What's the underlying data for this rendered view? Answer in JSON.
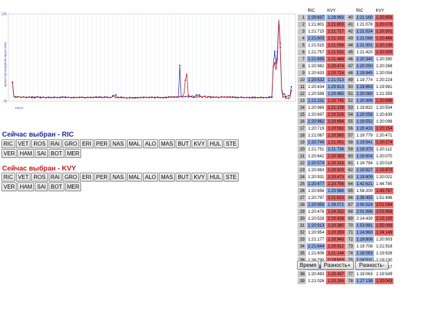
{
  "chart_data": {
    "type": "line",
    "ylim": [
      78,
      135
    ],
    "ytick_top": "135",
    "ytick_bottom": "78",
    "ylabel": "время прохождения круга (мм)",
    "xlabel_prefix": "Круги",
    "grid": true,
    "series": [
      {
        "color": "#2833a8",
        "values": [
          90.2,
          81.5,
          80.7,
          80.9,
          80.9,
          80.9,
          80.6,
          80.4,
          80.8,
          80.6,
          80.3,
          80.5,
          80.8,
          80.6,
          80.8,
          80.8,
          80.2,
          80.9,
          80.8,
          80.5,
          80.7,
          80.2,
          80.6,
          80.6,
          80.2,
          80.7,
          80.6,
          80.4,
          80.3,
          80.7,
          80.6,
          80.7,
          80.4,
          80.6,
          80.5,
          80.9,
          80.8,
          80.6,
          80.8,
          80.3,
          80.6,
          80.5,
          80.3,
          80.6,
          80.3,
          80.5,
          80.4,
          80.6,
          80.4,
          80.7,
          80.6,
          80.6,
          80.4,
          80.3,
          80.5,
          80.6,
          80.4,
          80.7,
          80.5,
          80.7,
          80.8,
          80.6,
          80.7,
          80.9,
          80.5,
          80.5,
          80.8,
          80.7,
          80.7,
          80.5,
          80.4,
          80.4,
          81.3,
          81.4,
          82.2,
          80.8,
          80.5,
          80.6,
          80.7,
          80.6,
          80.4,
          80.3,
          80.1,
          80.1,
          80.5,
          80.4,
          80.3,
          80.4,
          80.4,
          80.5,
          80.3,
          80.4,
          80.4,
          80.4,
          80.6,
          80.7,
          80.5,
          80.5,
          80.4,
          80.6,
          80.7,
          80.5,
          80.2,
          80.5,
          80.7,
          80.6,
          80.4,
          80.6,
          80.3,
          80.4,
          80.3,
          80.4,
          80.6,
          80.9,
          80.7,
          80.9,
          80.9,
          80.8,
          80.8,
          81.0,
          101.4,
          80.9,
          80.9,
          80.7,
          81.1,
          80.9,
          80.8,
          81.4,
          81.0,
          81.6,
          80.8,
          81.4,
          82.1,
          81.6,
          82.1,
          81.1,
          80.7,
          81.1,
          81.2,
          80.4,
          80.7,
          81.3,
          80.7,
          80.9,
          80.6,
          80.6,
          80.7,
          80.7,
          80.5,
          80.7,
          81.0,
          80.7,
          80.8,
          80.7,
          80.7,
          80.6,
          80.9,
          80.6,
          80.5,
          80.8,
          80.6,
          80.2,
          80.4,
          80.5,
          80.7,
          80.6,
          80.4,
          80.3,
          80.4,
          80.6,
          80.5,
          80.4,
          80.6,
          80.7,
          80.6,
          80.5,
          80.3,
          80.3,
          80.4,
          80.7,
          80.4,
          80.5,
          80.4,
          80.4,
          80.8,
          80.8,
          80.9,
          101.4,
          110.6,
          101.9,
          110.3,
          131.2,
          113.2,
          86.5,
          82.3,
          83.0,
          80.9,
          81.3,
          81.5,
          81.9,
          87.5
        ]
      },
      {
        "color": "#c41a1a",
        "values": [
          90.5,
          81.0,
          80.8,
          80.4,
          80.9,
          80.9,
          80.6,
          80.6,
          80.9,
          80.5,
          80.6,
          80.6,
          80.8,
          80.4,
          80.3,
          80.3,
          80.6,
          80.5,
          80.9,
          80.7,
          80.2,
          80.6,
          80.6,
          80.6,
          80.4,
          80.5,
          80.3,
          80.7,
          80.4,
          80.5,
          80.3,
          80.6,
          80.4,
          80.6,
          80.3,
          80.2,
          80.7,
          80.5,
          80.4,
          80.4,
          80.6,
          80.5,
          80.4,
          80.2,
          80.6,
          80.5,
          80.4,
          80.6,
          80.6,
          80.4,
          80.6,
          80.4,
          80.2,
          80.6,
          80.5,
          80.3,
          80.6,
          80.4,
          80.4,
          80.5,
          80.5,
          80.3,
          80.6,
          80.4,
          80.6,
          80.2,
          80.6,
          80.5,
          80.5,
          80.4,
          80.5,
          80.5,
          81.7,
          81.3,
          80.4,
          80.4,
          80.4,
          80.4,
          80.3,
          80.3,
          80.3,
          80.3,
          80.2,
          80.2,
          80.2,
          80.2,
          80.2,
          80.1,
          80.1,
          80.1,
          80.4,
          80.3,
          80.5,
          80.6,
          80.3,
          80.6,
          80.5,
          80.5,
          80.6,
          80.3,
          80.5,
          80.4,
          80.6,
          80.2,
          80.5,
          80.4,
          80.3,
          80.4,
          80.2,
          80.7,
          80.6,
          80.6,
          80.8,
          80.5,
          80.8,
          80.6,
          80.7,
          80.5,
          80.7,
          80.5,
          81.0,
          81.1,
          81.2,
          82.9,
          91.7,
          96.2,
          81.9,
          80.9,
          81.1,
          80.5,
          80.5,
          80.6,
          80.8,
          80.8,
          80.9,
          81.0,
          80.6,
          81.0,
          81.3,
          80.5,
          80.8,
          81.0,
          80.4,
          80.6,
          80.8,
          80.5,
          80.7,
          80.6,
          80.4,
          80.6,
          80.8,
          80.6,
          80.8,
          80.5,
          80.7,
          80.9,
          80.6,
          80.6,
          80.9,
          80.6,
          80.3,
          80.7,
          80.5,
          80.4,
          80.6,
          80.4,
          80.4,
          80.4,
          80.5,
          80.5,
          80.2,
          80.4,
          80.2,
          80.4,
          80.2,
          80.3,
          80.4,
          80.5,
          80.6,
          80.4,
          80.2,
          80.5,
          80.3,
          80.4,
          80.4,
          80.5,
          80.5,
          99.4,
          103.0,
          98.3,
          105.4,
          130.4,
          115.8,
          85.7,
          80.7,
          81.1,
          80.1,
          79.8,
          80.0,
          80.3,
          84.9
        ]
      }
    ]
  },
  "selection_ric": {
    "title": "Сейчас выбран - RIC",
    "color": "#2833a8",
    "buttons_row1": [
      "RIC",
      "VET",
      "ROS",
      "RAI",
      "GRO",
      "ERI",
      "PER",
      "NAS",
      "MAL",
      "ALO",
      "MAS",
      "BUT",
      "KVY",
      "HUL",
      "STE"
    ],
    "buttons_row2": [
      "VER",
      "HAM",
      "SAI",
      "BOT",
      "MER"
    ]
  },
  "selection_kvy": {
    "title": "Сейчас выбран - KVY",
    "color": "#c41a1a",
    "buttons_row1": [
      "RIC",
      "VET",
      "ROS",
      "RAI",
      "GRO",
      "ERI",
      "PER",
      "NAS",
      "MAL",
      "ALO",
      "MAS",
      "BUT",
      "KVY",
      "HUL",
      "STE"
    ],
    "buttons_row2": [
      "VER",
      "HAM",
      "SAI",
      "BOT",
      "MER"
    ]
  },
  "lap_table": {
    "headers": [
      "",
      "RIC",
      "KVY",
      "",
      "RIC",
      "KVY"
    ],
    "rows": [
      [
        "1",
        "1:29:697",
        "1:28:993",
        "40",
        "1:21:160",
        "1:20:956"
      ],
      [
        "2",
        "1:21:801",
        "1:21:803",
        "41",
        "1:21:078",
        "1:20:078"
      ],
      [
        "3",
        "1:21:715",
        "1:21:717",
        "42",
        "1:21:524",
        "1:20:301"
      ],
      [
        "4",
        "1:21:603",
        "1:21:153",
        "43",
        "1:21:088",
        "1:20:466"
      ],
      [
        "5",
        "1:21:515",
        "1:21:056",
        "44",
        "1:21:301",
        "1:20:135"
      ],
      [
        "6",
        "1:21:757",
        "1:21:532",
        "45",
        "1:21:420",
        "1:20:305"
      ],
      [
        "7",
        "1:21:695",
        "1:21:468",
        "46",
        "1:20:340",
        "1:20:390"
      ],
      [
        "8",
        "1:20:982",
        "1:20:474",
        "47",
        "1:20:050",
        "1:20:268"
      ],
      [
        "9",
        "1:20:633",
        "1:20:724",
        "48",
        "1:19:945",
        "1:20:004"
      ],
      [
        "10",
        "1:20:532",
        "1:21:013",
        "49",
        "1:19:774",
        "1:20:224"
      ],
      [
        "11",
        "1:20:434",
        "1:20:613",
        "50",
        "1:19:863",
        "1:19:981"
      ],
      [
        "12",
        "1:20:599",
        "1:20:465",
        "51",
        "1:20:060",
        "1:21:359"
      ],
      [
        "13",
        "1:21:231",
        "1:20:745",
        "52",
        "1:20:999",
        "1:20:696"
      ],
      [
        "14",
        "1:20:969",
        "1:21:139",
        "53",
        "1:19:832",
        "1:20:504"
      ],
      [
        "15",
        "1:20:697",
        "1:20:526",
        "54",
        "1:20:056",
        "1:20:839"
      ],
      [
        "16",
        "1:20:962",
        "1:20:694",
        "55",
        "1:19:552",
        "1:20:098"
      ],
      [
        "17",
        "1:20:719",
        "1:20:592",
        "56",
        "1:20:433",
        "1:20:154"
      ],
      [
        "18",
        "1:21:067",
        "1:20:565",
        "57",
        "1:19:779",
        "1:20:471"
      ],
      [
        "19",
        "1:20:749",
        "1:21:001",
        "58",
        "1:19:541",
        "1:20:274"
      ],
      [
        "20",
        "1:21:751",
        "1:21:738",
        "59",
        "1:19:370",
        "1:20:112"
      ],
      [
        "21",
        "1:20:642",
        "1:20:393",
        "60",
        "1:19:604",
        "1:20:070"
      ],
      [
        "22",
        "1:20:574",
        "1:20:318",
        "61",
        "1:19:794",
        "1:20:018"
      ],
      [
        "23",
        "1:20:863",
        "1:20:923",
        "62",
        "1:19:927",
        "1:19:873"
      ],
      [
        "24",
        "1:20:931",
        "1:20:473",
        "63",
        "1:19:809",
        "1:20:021"
      ],
      [
        "25",
        "1:20:477",
        "1:20:756",
        "64",
        "1:42:621",
        "1:44:785"
      ],
      [
        "26",
        "1:20:656",
        "1:20:988",
        "65",
        "1:59:200",
        "1:43:767"
      ],
      [
        "27",
        "1:20:797",
        "1:21:623",
        "66",
        "1:39:455",
        "1:51:496"
      ],
      [
        "28",
        "1:20:959",
        "1:39:072",
        "67",
        "2:00:524",
        "2:01:084"
      ],
      [
        "29",
        "1:20:478",
        "1:24:152",
        "68",
        "2:01:996",
        "2:03:958"
      ],
      [
        "30",
        "1:20:528",
        "1:20:428",
        "69",
        "2:14:439",
        "2:15:105"
      ],
      [
        "31",
        "1:20:913",
        "1:20:380",
        "70",
        "1:53:981",
        "1:55:099"
      ],
      [
        "32",
        "1:20:954",
        "1:20:359",
        "71",
        "1:24:960",
        "1:24:149"
      ],
      [
        "33",
        "1:21:177",
        "1:20:943",
        "72",
        "1:19:606",
        "1:20:903"
      ],
      [
        "34",
        "1:21:644",
        "1:20:912",
        "73",
        "1:19:708",
        "1:21:918"
      ],
      [
        "35",
        "1:21:606",
        "1:21:144",
        "74",
        "1:18:063",
        "1:19:928"
      ],
      [
        "36",
        "1:38:790",
        "1:19:815",
        "75",
        "1:18:511",
        "1:19:130"
      ],
      [
        "37",
        "1:22:880",
        "1:20:035",
        "76",
        "1:19:087",
        "1:19:517"
      ],
      [
        "38",
        "1:20:493",
        "1:20:437",
        "77",
        "1:19:063",
        "1:19:549"
      ],
      [
        "39",
        "1:21:026",
        "1:20:259",
        "78",
        "1:27:138",
        "1:20:043"
      ]
    ]
  },
  "bottom_buttons": {
    "time": "Время",
    "diff_plus": "Разность+",
    "diff_minus": "Разность-"
  }
}
